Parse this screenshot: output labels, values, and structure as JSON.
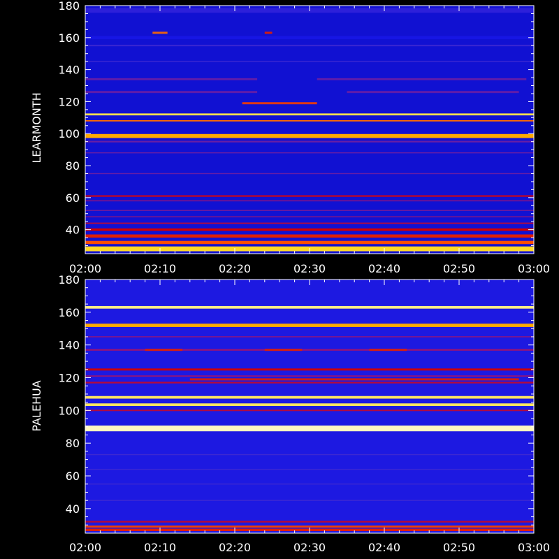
{
  "chart_data": [
    {
      "type": "heatmap",
      "title": "",
      "station": "LEARMONTH",
      "xlabel": "",
      "ylabel": "LEARMONTH",
      "xlim": [
        "02:00",
        "03:00"
      ],
      "ylim": [
        25,
        180
      ],
      "x_tick_labels": [
        "02:00",
        "02:10",
        "02:20",
        "02:30",
        "02:40",
        "02:50",
        "03:00"
      ],
      "y_tick_labels": [
        "40",
        "60",
        "80",
        "100",
        "120",
        "140",
        "160",
        "180"
      ],
      "y_ticks": [
        40,
        60,
        80,
        100,
        120,
        140,
        160,
        180
      ],
      "background_intensity": 0.3,
      "bands": [
        {
          "freq": 177,
          "width": 3.0,
          "intensity": 0.4
        },
        {
          "freq": 160,
          "width": 2.0,
          "intensity": 0.33
        },
        {
          "freq": 155,
          "width": 0.8,
          "intensity": 0.45
        },
        {
          "freq": 145,
          "width": 0.6,
          "intensity": 0.45
        },
        {
          "freq": 112,
          "width": 1.2,
          "intensity": 0.92
        },
        {
          "freq": 108,
          "width": 0.8,
          "intensity": 0.8
        },
        {
          "freq": 98.5,
          "width": 2.5,
          "intensity": 0.85
        },
        {
          "freq": 95,
          "width": 1.0,
          "intensity": 0.5
        },
        {
          "freq": 88,
          "width": 0.6,
          "intensity": 0.5
        },
        {
          "freq": 75,
          "width": 0.6,
          "intensity": 0.5
        },
        {
          "freq": 61,
          "width": 1.0,
          "intensity": 0.62
        },
        {
          "freq": 58,
          "width": 0.6,
          "intensity": 0.55
        },
        {
          "freq": 52,
          "width": 0.6,
          "intensity": 0.52
        },
        {
          "freq": 48,
          "width": 0.6,
          "intensity": 0.55
        },
        {
          "freq": 44,
          "width": 0.8,
          "intensity": 0.6
        },
        {
          "freq": 40,
          "width": 1.5,
          "intensity": 0.65
        },
        {
          "freq": 36,
          "width": 2.0,
          "intensity": 0.7
        },
        {
          "freq": 32,
          "width": 2.0,
          "intensity": 0.78
        },
        {
          "freq": 28,
          "width": 3.0,
          "intensity": 0.9
        }
      ],
      "bursts": [
        {
          "freq": 163,
          "t_start": "02:09",
          "t_end": "02:11",
          "intensity": 0.8
        },
        {
          "freq": 163,
          "t_start": "02:24",
          "t_end": "02:25",
          "intensity": 0.7
        },
        {
          "freq": 134,
          "t_start": "02:00",
          "t_end": "02:23",
          "intensity": 0.5
        },
        {
          "freq": 126,
          "t_start": "02:00",
          "t_end": "02:23",
          "intensity": 0.5
        },
        {
          "freq": 134,
          "t_start": "02:31",
          "t_end": "02:59",
          "intensity": 0.5
        },
        {
          "freq": 126,
          "t_start": "02:35",
          "t_end": "02:58",
          "intensity": 0.5
        },
        {
          "freq": 119,
          "t_start": "02:21",
          "t_end": "02:31",
          "intensity": 0.75
        }
      ]
    },
    {
      "type": "heatmap",
      "title": "",
      "station": "PALEHUA",
      "xlabel": "",
      "ylabel": "PALEHUA",
      "xlim": [
        "02:00",
        "03:00"
      ],
      "ylim": [
        25,
        180
      ],
      "x_tick_labels": [
        "02:00",
        "02:10",
        "02:20",
        "02:30",
        "02:40",
        "02:50",
        "03:00"
      ],
      "y_tick_labels": [
        "40",
        "60",
        "80",
        "100",
        "120",
        "140",
        "160",
        "180"
      ],
      "y_ticks": [
        40,
        60,
        80,
        100,
        120,
        140,
        160,
        180
      ],
      "background_intensity": 0.35,
      "bands": [
        {
          "freq": 163,
          "width": 1.6,
          "intensity": 0.95
        },
        {
          "freq": 152,
          "width": 2.0,
          "intensity": 0.85
        },
        {
          "freq": 145,
          "width": 0.6,
          "intensity": 0.55
        },
        {
          "freq": 137,
          "width": 1.0,
          "intensity": 0.55
        },
        {
          "freq": 125,
          "width": 1.0,
          "intensity": 0.55
        },
        {
          "freq": 121,
          "width": 0.8,
          "intensity": 0.55
        },
        {
          "freq": 117,
          "width": 1.0,
          "intensity": 0.6
        },
        {
          "freq": 108,
          "width": 1.6,
          "intensity": 0.93
        },
        {
          "freq": 103.5,
          "width": 1.6,
          "intensity": 0.93
        },
        {
          "freq": 100,
          "width": 0.8,
          "intensity": 0.6
        },
        {
          "freq": 89,
          "width": 3.5,
          "intensity": 0.98
        },
        {
          "freq": 73,
          "width": 0.6,
          "intensity": 0.45
        },
        {
          "freq": 64,
          "width": 0.6,
          "intensity": 0.45
        },
        {
          "freq": 55,
          "width": 0.6,
          "intensity": 0.45
        },
        {
          "freq": 45,
          "width": 0.6,
          "intensity": 0.45
        },
        {
          "freq": 32,
          "width": 1.0,
          "intensity": 0.6
        },
        {
          "freq": 29,
          "width": 1.2,
          "intensity": 0.75
        },
        {
          "freq": 27,
          "width": 1.5,
          "intensity": 0.7
        }
      ],
      "bursts": [
        {
          "freq": 137,
          "t_start": "02:08",
          "t_end": "02:13",
          "intensity": 0.7
        },
        {
          "freq": 137,
          "t_start": "02:24",
          "t_end": "02:29",
          "intensity": 0.7
        },
        {
          "freq": 137,
          "t_start": "02:38",
          "t_end": "02:43",
          "intensity": 0.7
        },
        {
          "freq": 125,
          "t_start": "02:00",
          "t_end": "03:00",
          "intensity": 0.65
        },
        {
          "freq": 119,
          "t_start": "02:14",
          "t_end": "02:58",
          "intensity": 0.7
        }
      ]
    }
  ]
}
